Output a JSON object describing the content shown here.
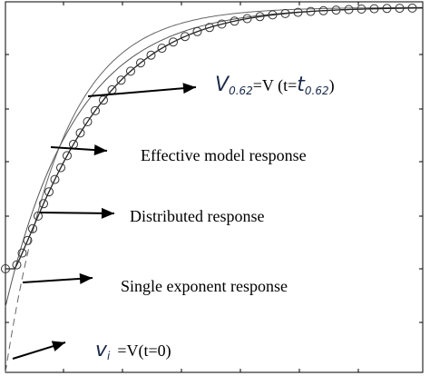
{
  "annotations": {
    "v062": {
      "symbol": "V",
      "subscript": "0.62",
      "equals": "=V (t=",
      "time_symbol": "t",
      "time_subscript": "0.62",
      "close": ")"
    },
    "effective": "Effective model response",
    "distributed": "Distributed response",
    "single": "Single exponent response",
    "vi": {
      "symbol": "v",
      "subscript": "i",
      "equals": "=V(t=0)"
    }
  }
}
